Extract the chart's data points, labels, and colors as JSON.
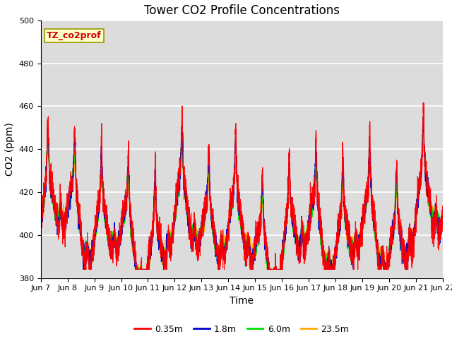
{
  "title": "Tower CO2 Profile Concentrations",
  "xlabel": "Time",
  "ylabel": "CO2 (ppm)",
  "ylim": [
    380,
    500
  ],
  "annotation_text": "TZ_co2prof",
  "annotation_bg": "#ffffcc",
  "annotation_border": "#cc8800",
  "series_colors": [
    "#ff0000",
    "#0000cc",
    "#00dd00",
    "#ffaa00"
  ],
  "series_labels": [
    "0.35m",
    "1.8m",
    "6.0m",
    "23.5m"
  ],
  "plot_bg": "#dcdcdc",
  "fig_bg": "#ffffff",
  "grid_color": "#ffffff",
  "xtick_labels": [
    "Jun 7",
    "Jun 8",
    "Jun 9",
    "Jun 10",
    "Jun 11",
    "Jun 12",
    "Jun 13",
    "Jun 14",
    "Jun 15",
    "Jun 16",
    "Jun 17",
    "Jun 18",
    "Jun 19",
    "Jun 20",
    "Jun 21",
    "Jun 22"
  ],
  "title_fontsize": 12,
  "axis_fontsize": 10,
  "tick_fontsize": 8,
  "legend_fontsize": 9
}
